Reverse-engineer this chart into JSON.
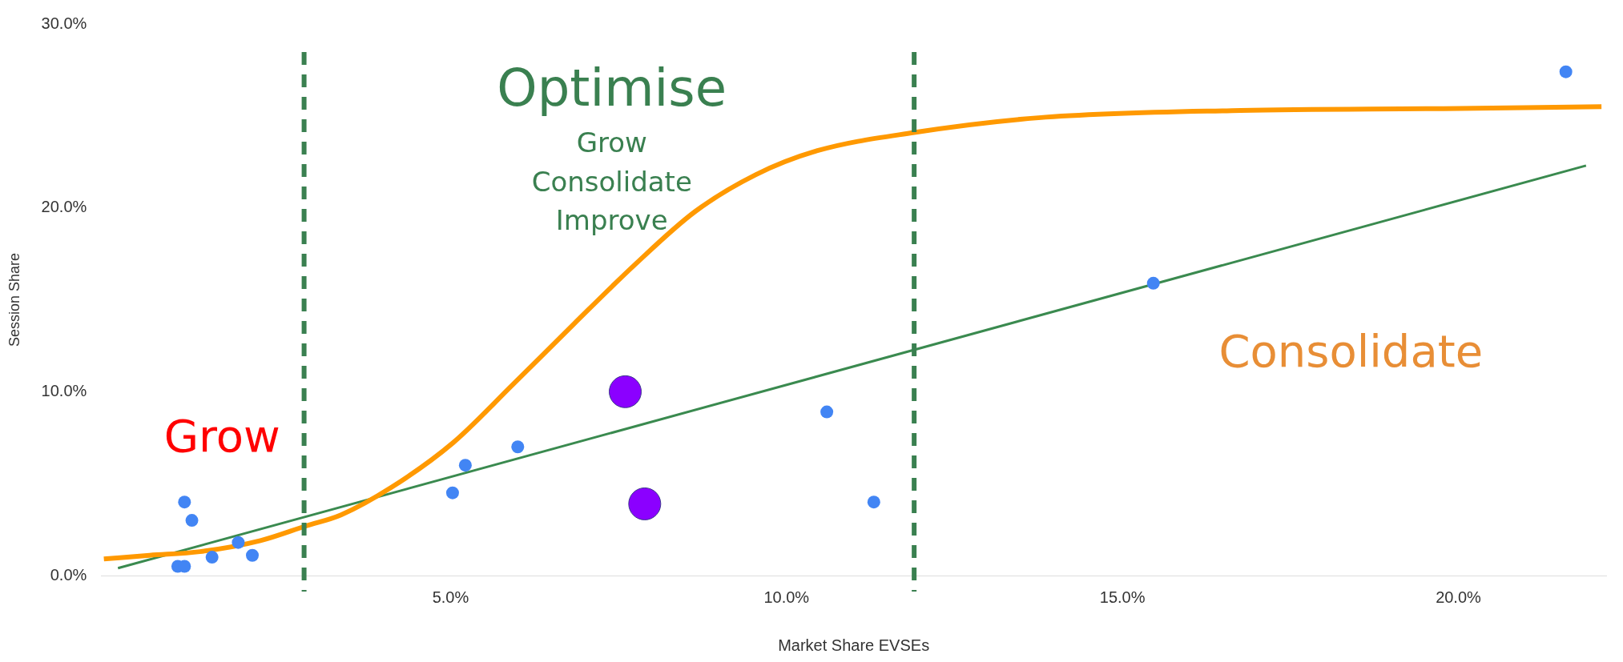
{
  "chart_data": {
    "type": "scatter",
    "xlabel": "Market Share EVSEs",
    "ylabel": "Session Share",
    "xlim": [
      -0.2,
      22.2
    ],
    "ylim": [
      0,
      30
    ],
    "xticks": [
      {
        "value": 5,
        "label": "5.0%"
      },
      {
        "value": 10,
        "label": "10.0%"
      },
      {
        "value": 15,
        "label": "15.0%"
      },
      {
        "value": 20,
        "label": "20.0%"
      }
    ],
    "yticks": [
      {
        "value": 0,
        "label": "0.0%"
      },
      {
        "value": 10,
        "label": "10.0%"
      },
      {
        "value": 20,
        "label": "20.0%"
      },
      {
        "value": 30,
        "label": "30.0%"
      }
    ],
    "grid": false,
    "legend": false,
    "marker": "circle",
    "series": [
      {
        "type": "line",
        "color": "#ff9900",
        "marker": "none",
        "x": [
          -0.16,
          0.52,
          1.27,
          2.17,
          2.85,
          3.37,
          4.12,
          5.03,
          5.93,
          6.84,
          7.74,
          8.64,
          9.54,
          10.45,
          11.9,
          13.75,
          16.76,
          19.78,
          22.13
        ],
        "values": [
          0.9,
          1.1,
          1.3,
          1.9,
          2.7,
          3.3,
          4.8,
          7.2,
          10.4,
          13.7,
          16.9,
          19.8,
          21.8,
          23.1,
          24.1,
          24.9,
          25.3,
          25.4,
          25.5
        ]
      },
      {
        "type": "line",
        "color": "#3a8a4f",
        "marker": "none",
        "x": [
          0.05,
          21.9
        ],
        "values": [
          0.4,
          22.3
        ]
      },
      {
        "color": "#4285f4",
        "x": [
          0.94,
          1.04,
          1.04,
          1.15,
          1.45,
          1.84,
          2.05,
          5.03,
          5.22,
          6.0,
          10.6,
          11.3,
          15.46,
          21.6
        ],
        "values": [
          0.5,
          0.5,
          4.0,
          3.0,
          1.0,
          1.8,
          1.1,
          4.5,
          6.0,
          7.0,
          8.9,
          4.0,
          15.9,
          27.4
        ]
      },
      {
        "color": "#8b00ff",
        "x": [
          7.6,
          7.89
        ],
        "values": [
          10.0,
          3.9
        ]
      }
    ],
    "ref_lines": [
      {
        "axis": "x",
        "value": 2.82,
        "color": "#3a8050",
        "line_style": "dashed"
      },
      {
        "axis": "x",
        "value": 11.9,
        "color": "#3a8050",
        "line_style": "dashed"
      }
    ],
    "annotations": [
      "Grow",
      "Optimise",
      "Grow",
      "Consolidate",
      "Improve",
      "Consolidate"
    ]
  }
}
